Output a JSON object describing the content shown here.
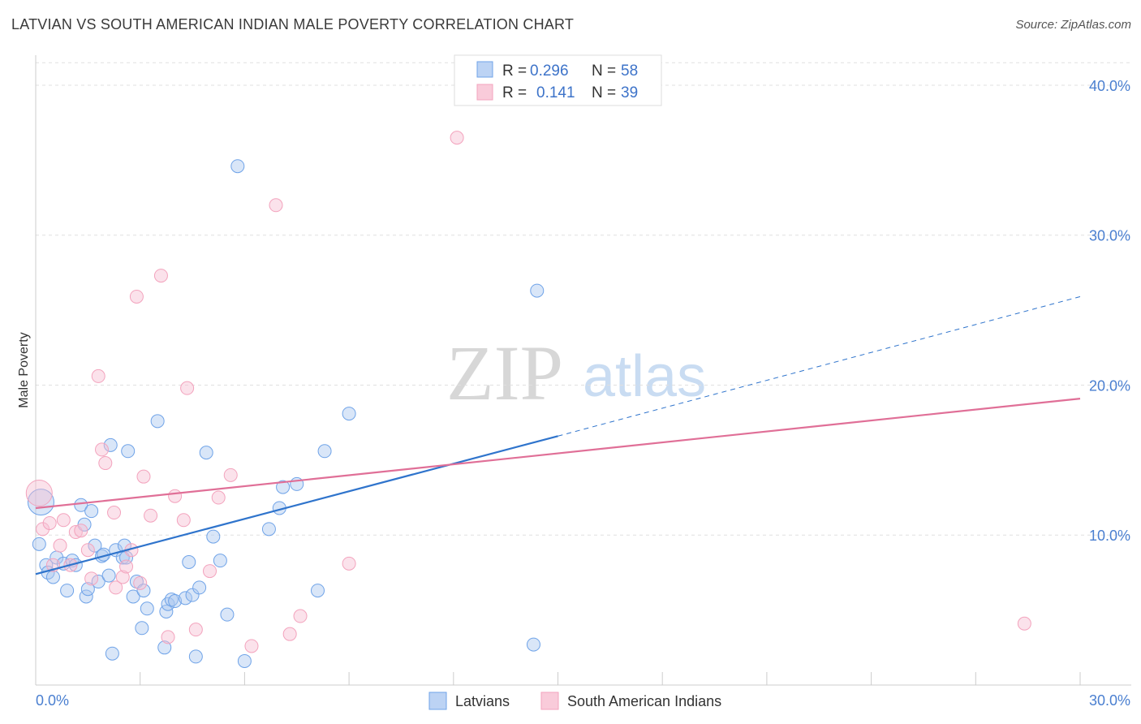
{
  "title": "LATVIAN VS SOUTH AMERICAN INDIAN MALE POVERTY CORRELATION CHART",
  "source": "Source: ZipAtlas.com",
  "watermark": {
    "zip": "ZIP",
    "atlas": "atlas"
  },
  "legend": {
    "r_label": "R =",
    "n_label": "N =",
    "rows": [
      {
        "r": "0.296",
        "n": "58"
      },
      {
        "r": "0.141",
        "n": "39"
      }
    ]
  },
  "chart_data": {
    "type": "scatter",
    "title": "LATVIAN VS SOUTH AMERICAN INDIAN MALE POVERTY CORRELATION CHART",
    "xlabel": "",
    "ylabel": "Male Poverty",
    "xlim": [
      0,
      30
    ],
    "ylim": [
      0,
      42
    ],
    "x_tick_labels": [
      "0.0%",
      "30.0%"
    ],
    "y_ticks": [
      10,
      20,
      30,
      40
    ],
    "y_tick_labels": [
      "10.0%",
      "20.0%",
      "30.0%",
      "40.0%"
    ],
    "grid": true,
    "legend_position": "top-center",
    "series": [
      {
        "name": "Latvians",
        "color": "#6fa3e8",
        "line_color": "#2f74cc",
        "r": 0.296,
        "n": 58,
        "trend": {
          "x": [
            0,
            15
          ],
          "y": [
            7.4,
            16.6
          ]
        },
        "trend_dashed": {
          "x": [
            15,
            30
          ],
          "y": [
            16.6,
            25.9
          ]
        },
        "x": [
          0.1,
          0.3,
          0.35,
          0.5,
          0.6,
          0.8,
          0.9,
          1.05,
          1.15,
          1.3,
          1.4,
          1.45,
          1.5,
          1.6,
          1.7,
          1.8,
          1.9,
          1.95,
          2.1,
          2.15,
          2.2,
          2.3,
          2.5,
          2.55,
          2.6,
          2.65,
          2.8,
          2.9,
          3.05,
          3.1,
          3.2,
          3.5,
          3.7,
          3.75,
          3.8,
          3.9,
          4.0,
          4.3,
          4.4,
          4.5,
          4.6,
          4.7,
          4.9,
          5.1,
          5.3,
          5.5,
          6.0,
          6.7,
          7.0,
          7.1,
          7.5,
          8.1,
          8.3,
          9.0,
          14.4,
          14.3,
          5.8,
          0.15
        ],
        "y": [
          9.4,
          8.0,
          7.5,
          7.2,
          8.5,
          8.1,
          6.3,
          8.3,
          8.0,
          12.0,
          10.7,
          5.9,
          6.4,
          11.6,
          9.3,
          6.9,
          8.6,
          8.7,
          7.3,
          16.0,
          2.1,
          9.0,
          8.5,
          9.3,
          8.5,
          15.6,
          5.9,
          6.9,
          3.8,
          6.3,
          5.1,
          17.6,
          2.5,
          4.9,
          5.4,
          5.7,
          5.6,
          5.8,
          8.2,
          6.0,
          1.9,
          6.5,
          15.5,
          9.9,
          8.3,
          4.7,
          1.6,
          10.4,
          11.8,
          13.2,
          13.4,
          6.3,
          15.6,
          18.1,
          26.3,
          2.7,
          34.6,
          12.2
        ]
      },
      {
        "name": "South American Indians",
        "color": "#f3a3bd",
        "line_color": "#e06f97",
        "r": 0.141,
        "n": 39,
        "trend": {
          "x": [
            0,
            30
          ],
          "y": [
            11.8,
            19.1
          ]
        },
        "x": [
          0.1,
          0.2,
          0.4,
          0.5,
          0.7,
          0.8,
          1.0,
          1.15,
          1.3,
          1.5,
          1.6,
          1.8,
          1.9,
          2.0,
          2.3,
          2.5,
          2.6,
          2.75,
          2.9,
          3.0,
          3.1,
          3.3,
          3.6,
          3.8,
          4.0,
          4.25,
          4.35,
          4.6,
          5.0,
          5.25,
          5.6,
          6.2,
          6.9,
          7.3,
          7.6,
          9.0,
          12.1,
          28.4,
          2.25
        ],
        "y": [
          12.8,
          10.4,
          10.8,
          8.0,
          9.3,
          11.0,
          8.0,
          10.2,
          10.3,
          9.0,
          7.1,
          20.6,
          15.7,
          14.8,
          6.5,
          7.2,
          7.9,
          9.0,
          25.9,
          6.8,
          13.9,
          11.3,
          27.3,
          3.2,
          12.6,
          11.0,
          19.8,
          3.7,
          7.6,
          12.5,
          14.0,
          2.6,
          32.0,
          3.4,
          4.6,
          8.1,
          36.5,
          4.1,
          11.5
        ]
      }
    ]
  },
  "bottom_legend": [
    "Latvians",
    "South American Indians"
  ]
}
